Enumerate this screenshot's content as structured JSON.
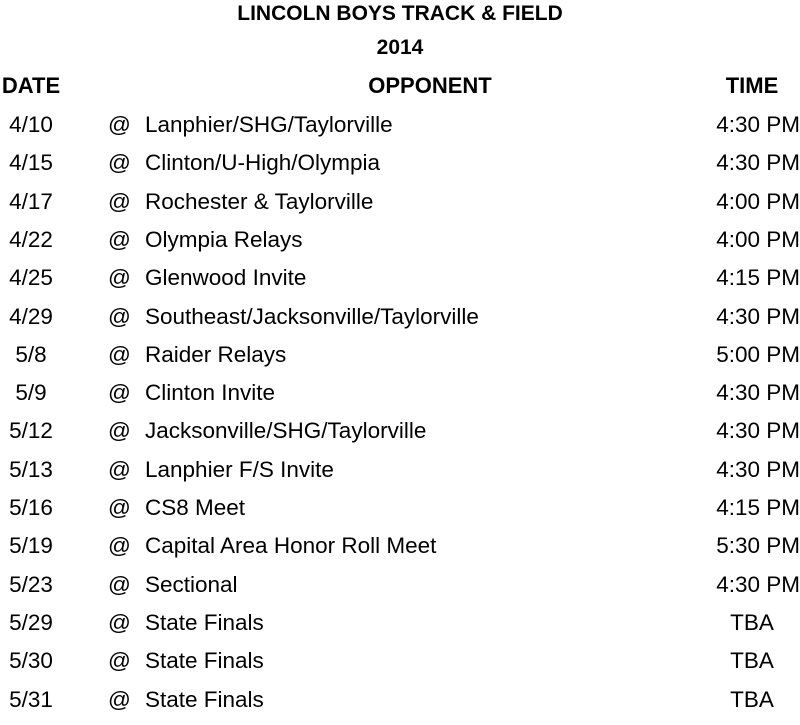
{
  "title": "LINCOLN BOYS TRACK & FIELD",
  "year": "2014",
  "headers": {
    "date": "DATE",
    "opponent": "OPPONENT",
    "time": "TIME"
  },
  "rows": [
    {
      "date": "4/10",
      "at": "@",
      "opponent": "Lanphier/SHG/Taylorville",
      "time": "4:30 PM"
    },
    {
      "date": "4/15",
      "at": "@",
      "opponent": "Clinton/U-High/Olympia",
      "time": "4:30 PM"
    },
    {
      "date": "4/17",
      "at": "@",
      "opponent": "Rochester & Taylorville",
      "time": "4:00 PM"
    },
    {
      "date": "4/22",
      "at": "@",
      "opponent": "Olympia Relays",
      "time": "4:00 PM"
    },
    {
      "date": "4/25",
      "at": "@",
      "opponent": "Glenwood Invite",
      "time": "4:15 PM"
    },
    {
      "date": "4/29",
      "at": "@",
      "opponent": "Southeast/Jacksonville/Taylorville",
      "time": "4:30 PM"
    },
    {
      "date": "5/8",
      "at": "@",
      "opponent": "Raider Relays",
      "time": "5:00 PM"
    },
    {
      "date": "5/9",
      "at": "@",
      "opponent": "Clinton Invite",
      "time": "4:30 PM"
    },
    {
      "date": "5/12",
      "at": "@",
      "opponent": "Jacksonville/SHG/Taylorville",
      "time": "4:30 PM"
    },
    {
      "date": "5/13",
      "at": "@",
      "opponent": "Lanphier F/S Invite",
      "time": "4:30 PM"
    },
    {
      "date": "5/16",
      "at": "@",
      "opponent": "CS8 Meet",
      "time": "4:15 PM"
    },
    {
      "date": "5/19",
      "at": "@",
      "opponent": "Capital Area Honor Roll Meet",
      "time": "5:30 PM"
    },
    {
      "date": "5/23",
      "at": "@",
      "opponent": "Sectional",
      "time": "4:30 PM"
    },
    {
      "date": "5/29",
      "at": "@",
      "opponent": "State Finals",
      "time": "TBA"
    },
    {
      "date": "5/30",
      "at": "@",
      "opponent": "State Finals",
      "time": "TBA"
    },
    {
      "date": "5/31",
      "at": "@",
      "opponent": "State Finals",
      "time": "TBA"
    }
  ]
}
